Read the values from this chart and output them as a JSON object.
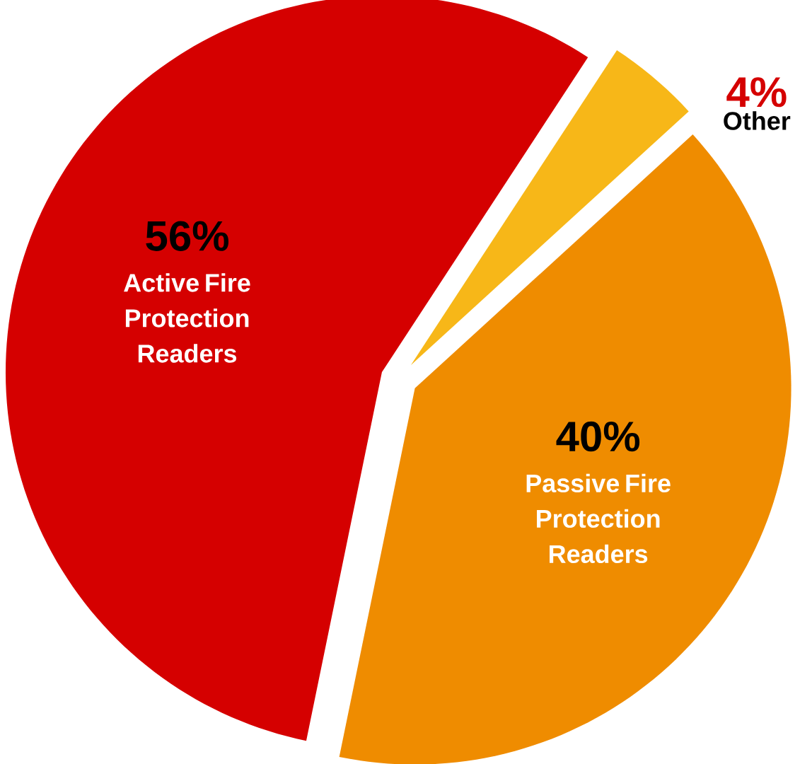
{
  "chart_data": {
    "type": "pie",
    "categories": [
      "Passive Fire Protection Readers",
      "Other",
      "Active Fire Protection Readers"
    ],
    "values": [
      40,
      4,
      56
    ],
    "value_labels": [
      "40%",
      "4%",
      "56%"
    ],
    "colors": [
      "#ef8c00",
      "#f7b718",
      "#d50000"
    ]
  }
}
